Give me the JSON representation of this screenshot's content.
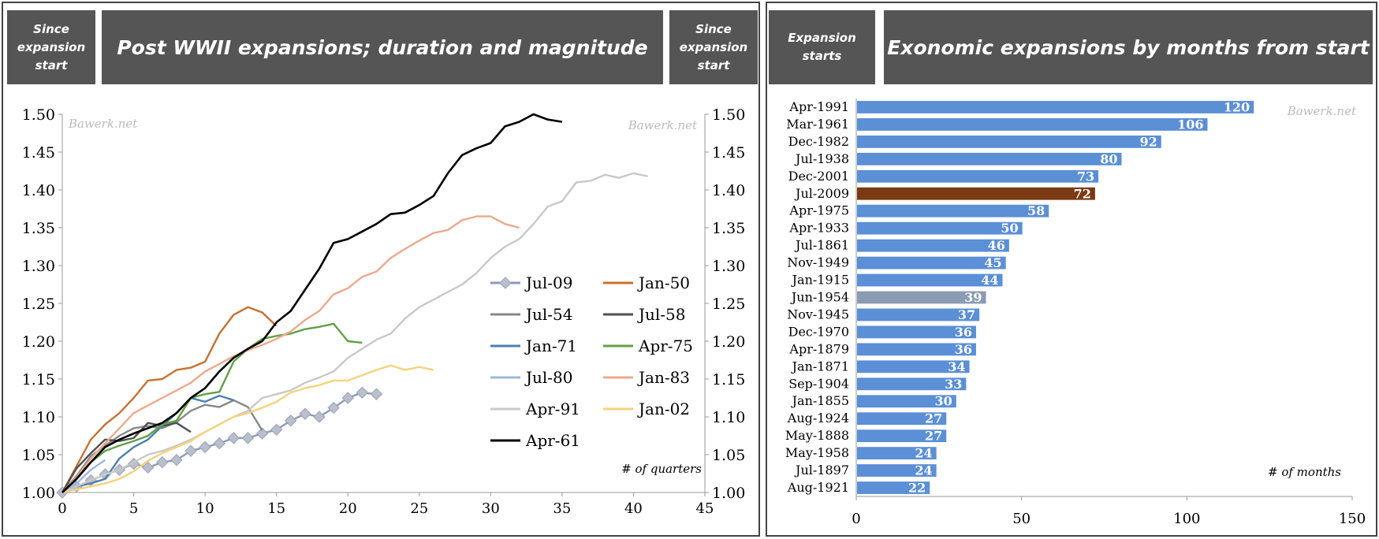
{
  "left": {
    "header_left": "Since\nexpansion\nstart",
    "title": "Post WWII expansions; duration and magnitude",
    "header_right": "Since\nexpansion\nstart",
    "watermark": "Bawerk.net",
    "axis_note": "# of quarters"
  },
  "right": {
    "header_left": "Expansion\nstarts",
    "title": "Exonomic expansions by months from start",
    "watermark": "Bawerk.net",
    "axis_note": "# of months"
  },
  "colors": {
    "header_bg": "#555555",
    "bar_default": "#5b8fd6",
    "bar_highlight": "#7b3a12",
    "bar_gray": "#8a9bb4"
  },
  "chart_data": [
    {
      "type": "line",
      "xlim": [
        0,
        45
      ],
      "ylim": [
        1.0,
        1.5
      ],
      "xticks": [
        "0",
        "5",
        "10",
        "15",
        "20",
        "25",
        "30",
        "35",
        "40",
        "45"
      ],
      "yticks": [
        "1.00",
        "1.05",
        "1.10",
        "1.15",
        "1.20",
        "1.25",
        "1.30",
        "1.35",
        "1.40",
        "1.45",
        "1.50"
      ],
      "legend_placement": "center-right",
      "series": [
        {
          "name": "Jul-09",
          "color": "#8e99b8",
          "marker": "diamond",
          "values": [
            1.0,
            1.008,
            1.016,
            1.024,
            1.03,
            1.038,
            1.033,
            1.04,
            1.043,
            1.055,
            1.06,
            1.065,
            1.072,
            1.072,
            1.078,
            1.083,
            1.095,
            1.104,
            1.1,
            1.112,
            1.125,
            1.132,
            1.13
          ]
        },
        {
          "name": "Jan-50",
          "color": "#c8712f",
          "values": [
            1.0,
            1.035,
            1.07,
            1.09,
            1.105,
            1.125,
            1.148,
            1.15,
            1.162,
            1.165,
            1.173,
            1.21,
            1.235,
            1.245,
            1.238,
            1.22
          ]
        },
        {
          "name": "Jul-54",
          "color": "#888888",
          "values": [
            1.0,
            1.022,
            1.048,
            1.062,
            1.075,
            1.085,
            1.088,
            1.085,
            1.093,
            1.108,
            1.116,
            1.113,
            1.122,
            1.113,
            1.082
          ]
        },
        {
          "name": "Jul-58",
          "color": "#505050",
          "values": [
            1.0,
            1.032,
            1.052,
            1.07,
            1.068,
            1.072,
            1.092,
            1.088,
            1.092,
            1.08
          ]
        },
        {
          "name": "Jan-71",
          "color": "#4a7fb0",
          "values": [
            1.0,
            1.008,
            1.012,
            1.018,
            1.045,
            1.06,
            1.07,
            1.088,
            1.105,
            1.125,
            1.12,
            1.128,
            1.122
          ]
        },
        {
          "name": "Apr-75",
          "color": "#62a046",
          "values": [
            1.0,
            1.018,
            1.04,
            1.055,
            1.062,
            1.068,
            1.075,
            1.09,
            1.095,
            1.125,
            1.13,
            1.133,
            1.173,
            1.19,
            1.203,
            1.207,
            1.21,
            1.216,
            1.219,
            1.223,
            1.2,
            1.198
          ]
        },
        {
          "name": "Jul-80",
          "color": "#9eb6dc",
          "values": [
            1.0,
            1.012,
            1.03,
            1.043
          ]
        },
        {
          "name": "Jan-83",
          "color": "#eca98c",
          "values": [
            1.0,
            1.02,
            1.045,
            1.065,
            1.085,
            1.105,
            1.115,
            1.125,
            1.135,
            1.145,
            1.16,
            1.17,
            1.18,
            1.188,
            1.195,
            1.203,
            1.213,
            1.228,
            1.24,
            1.262,
            1.27,
            1.285,
            1.292,
            1.31,
            1.322,
            1.333,
            1.343,
            1.347,
            1.36,
            1.365,
            1.365,
            1.355,
            1.35
          ]
        },
        {
          "name": "Apr-91",
          "color": "#c8c8c8",
          "values": [
            1.0,
            1.008,
            1.016,
            1.024,
            1.03,
            1.04,
            1.05,
            1.055,
            1.062,
            1.07,
            1.08,
            1.09,
            1.1,
            1.108,
            1.125,
            1.13,
            1.135,
            1.145,
            1.152,
            1.16,
            1.178,
            1.19,
            1.202,
            1.21,
            1.23,
            1.245,
            1.255,
            1.265,
            1.275,
            1.29,
            1.31,
            1.325,
            1.335,
            1.355,
            1.378,
            1.385,
            1.41,
            1.412,
            1.42,
            1.416,
            1.422,
            1.418
          ]
        },
        {
          "name": "Jan-02",
          "color": "#f6d27a",
          "values": [
            1.0,
            1.004,
            1.008,
            1.012,
            1.018,
            1.028,
            1.042,
            1.052,
            1.06,
            1.068,
            1.08,
            1.09,
            1.1,
            1.105,
            1.112,
            1.12,
            1.132,
            1.138,
            1.142,
            1.148,
            1.148,
            1.155,
            1.162,
            1.168,
            1.162,
            1.166,
            1.162
          ]
        },
        {
          "name": "Apr-61",
          "color": "#000000",
          "values": [
            1.0,
            1.018,
            1.04,
            1.06,
            1.07,
            1.078,
            1.085,
            1.092,
            1.105,
            1.125,
            1.138,
            1.16,
            1.178,
            1.19,
            1.2,
            1.225,
            1.24,
            1.268,
            1.296,
            1.33,
            1.335,
            1.345,
            1.355,
            1.368,
            1.37,
            1.38,
            1.392,
            1.422,
            1.446,
            1.455,
            1.462,
            1.484,
            1.49,
            1.5,
            1.493,
            1.49
          ]
        }
      ]
    },
    {
      "type": "bar",
      "orientation": "horizontal",
      "xlim": [
        0,
        150
      ],
      "xticks": [
        "0",
        "50",
        "100",
        "150"
      ],
      "categories": [
        "Apr-1991",
        "Mar-1961",
        "Dec-1982",
        "Jul-1938",
        "Dec-2001",
        "Jul-2009",
        "Apr-1975",
        "Apr-1933",
        "Jul-1861",
        "Nov-1949",
        "Jan-1915",
        "Jun-1954",
        "Nov-1945",
        "Dec-1970",
        "Apr-1879",
        "Jan-1871",
        "Sep-1904",
        "Jan-1855",
        "Aug-1924",
        "May-1888",
        "May-1958",
        "Jul-1897",
        "Aug-1921"
      ],
      "values": [
        120,
        106,
        92,
        80,
        73,
        72,
        58,
        50,
        46,
        45,
        44,
        39,
        37,
        36,
        36,
        34,
        33,
        30,
        27,
        27,
        24,
        24,
        22
      ],
      "highlight": {
        "Jul-2009": "bar_highlight",
        "Jun-1954": "bar_gray"
      }
    }
  ]
}
